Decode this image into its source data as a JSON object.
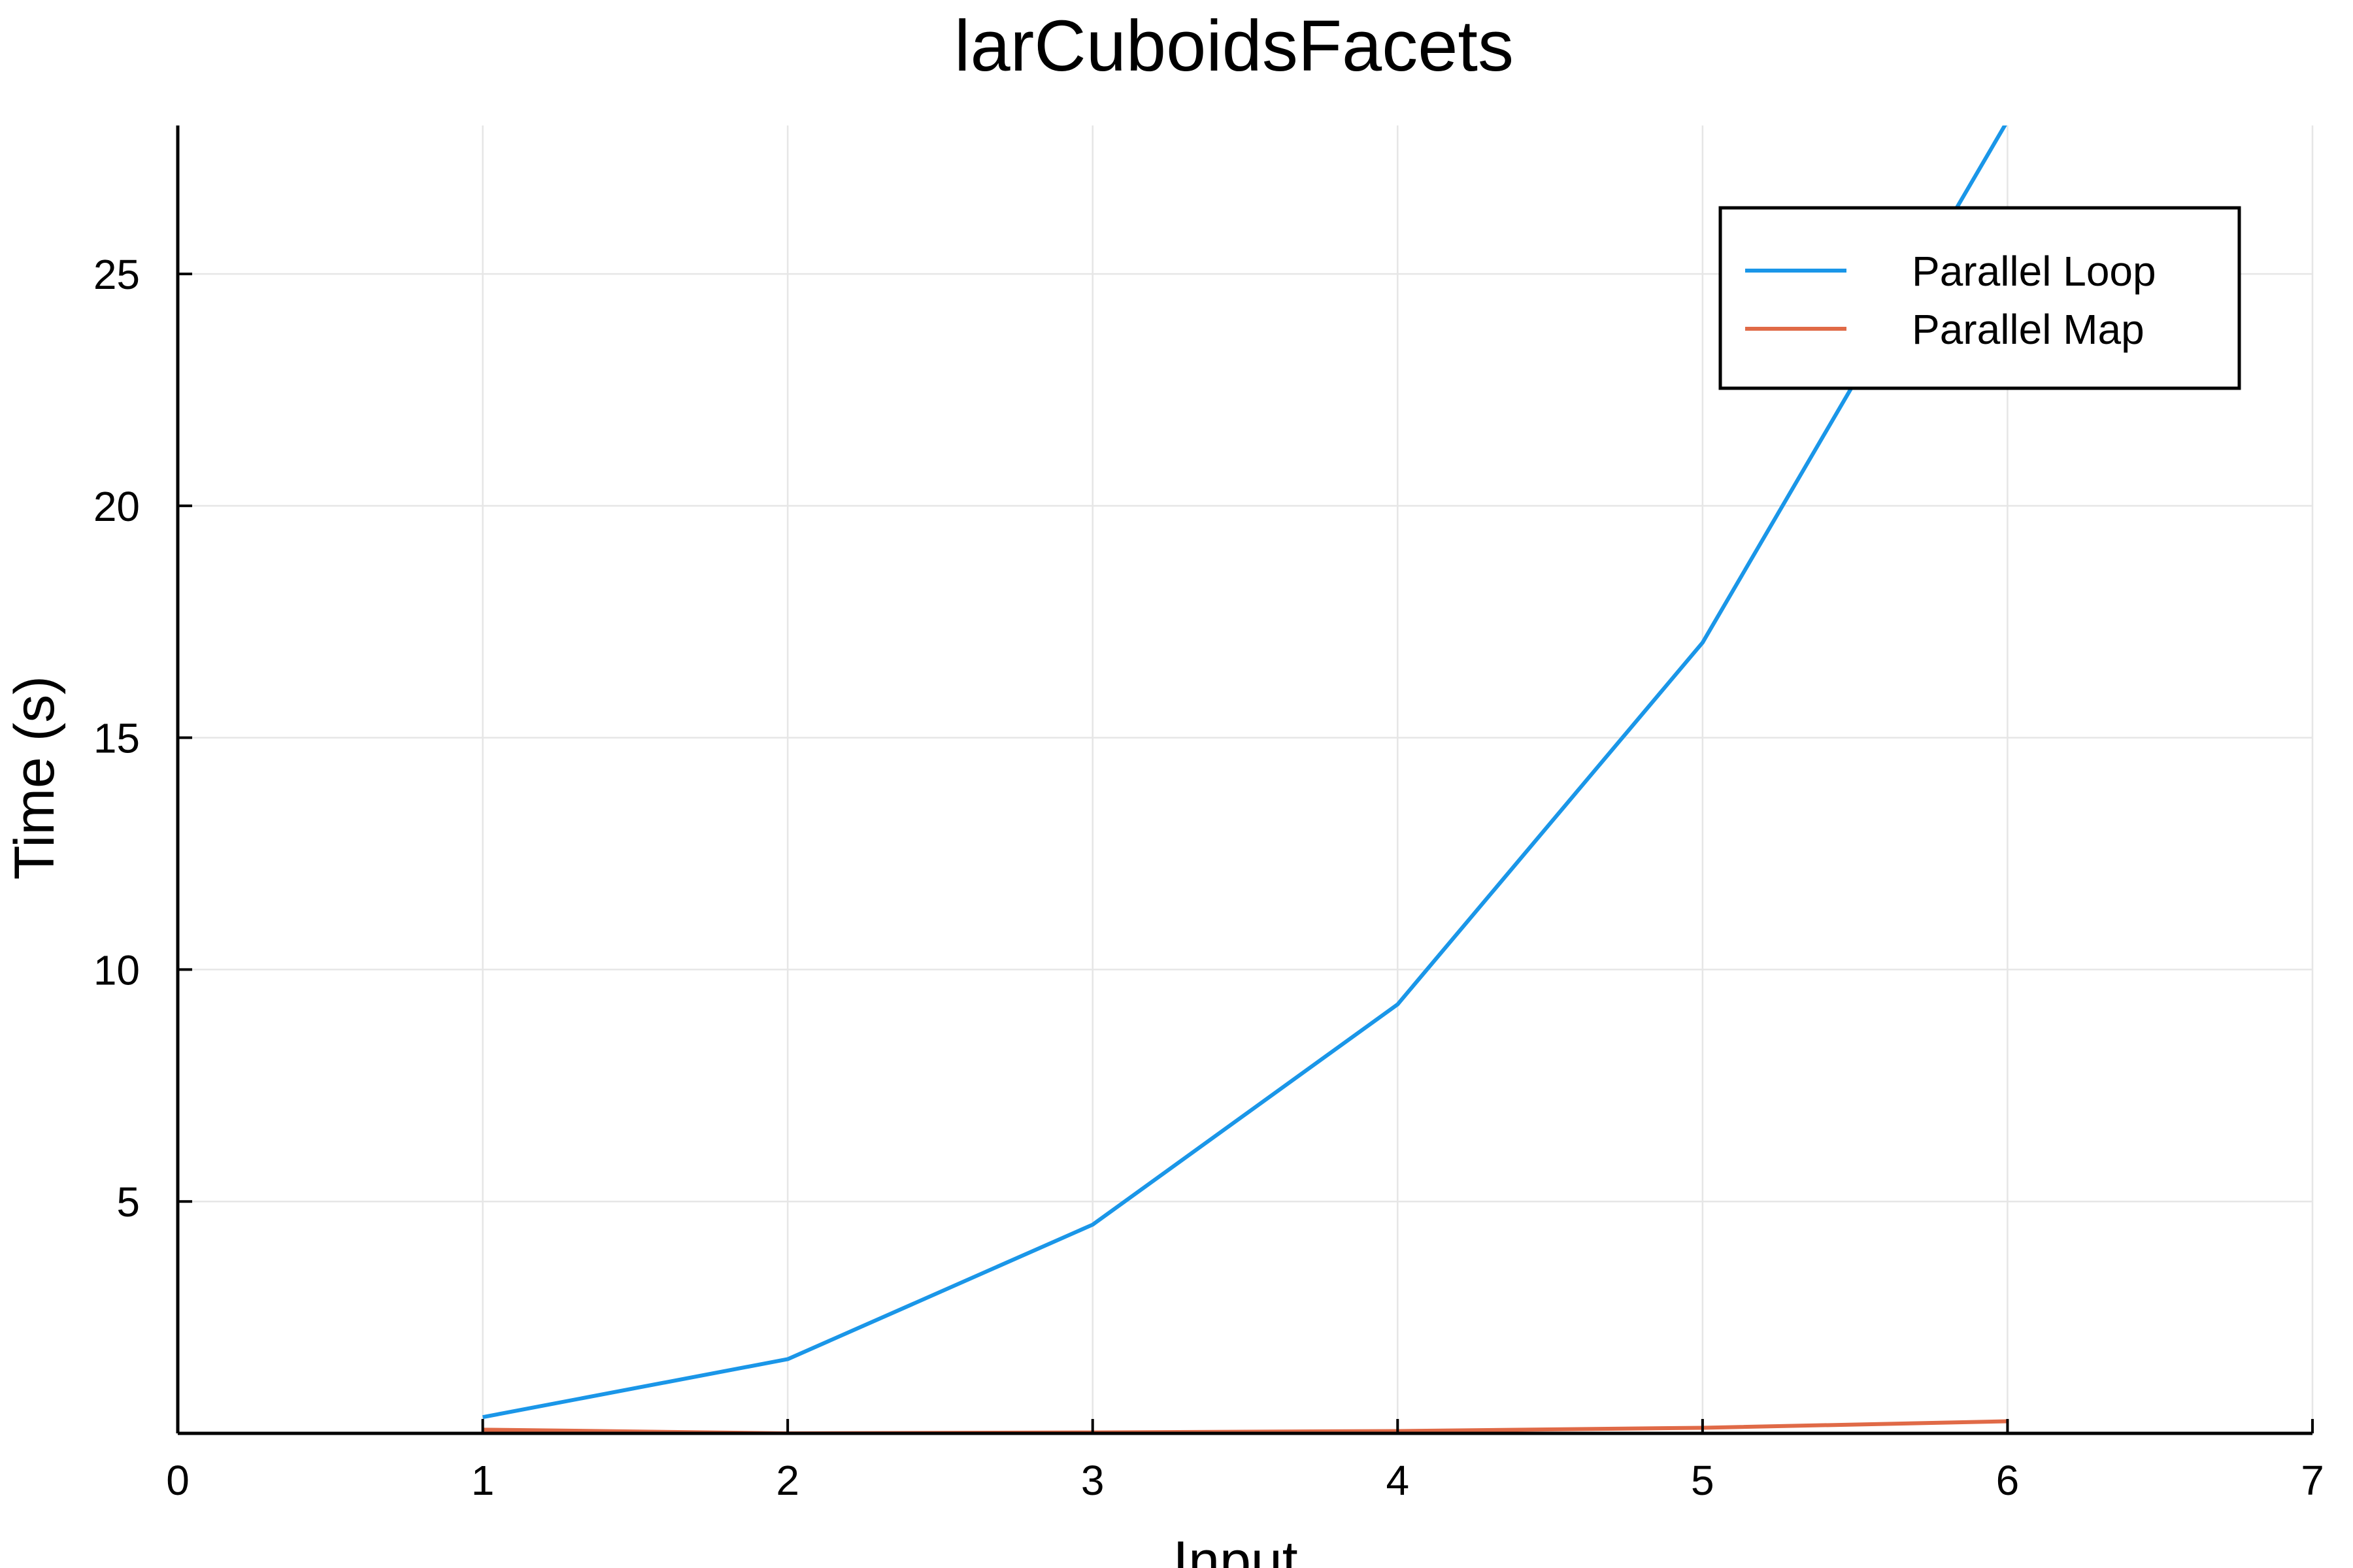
{
  "chart_data": {
    "type": "line",
    "title": "larCuboidsFacets",
    "xlabel": "Input",
    "ylabel": "Time (s)",
    "xlim": [
      0,
      7
    ],
    "ylim": [
      0,
      28.2
    ],
    "xticks": [
      0,
      1,
      2,
      3,
      4,
      5,
      6,
      7
    ],
    "yticks": [
      5,
      10,
      15,
      20,
      25
    ],
    "grid": true,
    "legend_position": "top-right",
    "x": [
      1,
      2,
      3,
      4,
      5,
      6
    ],
    "series": [
      {
        "name": "Parallel Loop",
        "color": "#1a96e8",
        "values": [
          0.35,
          1.6,
          4.5,
          9.25,
          17.05,
          28.3
        ]
      },
      {
        "name": "Parallel Map",
        "color": "#e06a47",
        "values": [
          0.08,
          0.0,
          0.02,
          0.05,
          0.12,
          0.26
        ]
      }
    ]
  }
}
